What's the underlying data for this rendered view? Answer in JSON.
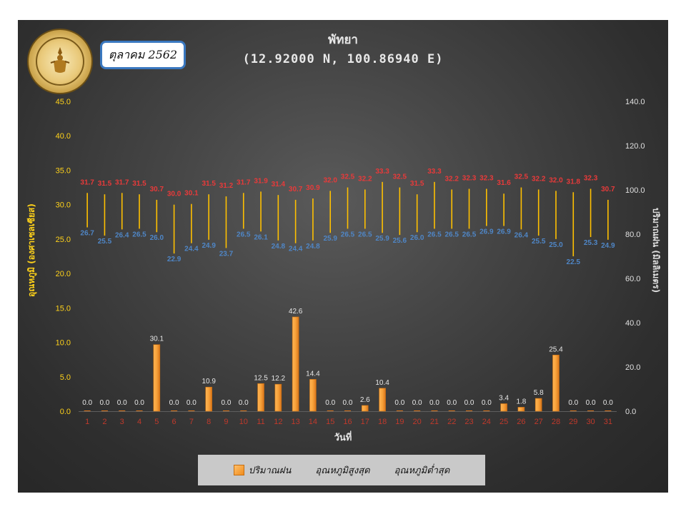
{
  "header": {
    "title": "พัทยา",
    "subtitle": "(12.92000 N, 100.86940 E)",
    "month_label": "ตุลาคม 2562"
  },
  "chart_data": {
    "type": "bar",
    "title": "พัทยา",
    "subtitle": "(12.92000 N, 100.86940 E)",
    "xlabel": "วันที่",
    "ylabel_left": "อุณหภูมิ (องศาเซลเซียส)",
    "ylabel_right": "ปริมาณฝน (มิลลิเมตร)",
    "ylim_left": [
      0,
      45
    ],
    "ylim_right": [
      0,
      140
    ],
    "yticks_left": [
      "0.0",
      "5.0",
      "10.0",
      "15.0",
      "20.0",
      "25.0",
      "30.0",
      "35.0",
      "40.0",
      "45.0"
    ],
    "yticks_right": [
      "0.0",
      "20.0",
      "40.0",
      "60.0",
      "80.0",
      "100.0",
      "120.0",
      "140.0"
    ],
    "categories": [
      "1",
      "2",
      "3",
      "4",
      "5",
      "6",
      "7",
      "8",
      "9",
      "10",
      "11",
      "12",
      "13",
      "14",
      "15",
      "16",
      "17",
      "18",
      "19",
      "20",
      "21",
      "22",
      "23",
      "24",
      "25",
      "26",
      "27",
      "28",
      "29",
      "30",
      "31"
    ],
    "series": [
      {
        "name": "ปริมาณฝน",
        "axis": "right",
        "values": [
          0.0,
          0.0,
          0.0,
          0.0,
          30.1,
          0.0,
          0.0,
          10.9,
          0.0,
          0.0,
          12.5,
          12.2,
          42.6,
          14.4,
          0.0,
          0.0,
          2.6,
          10.4,
          0.0,
          0.0,
          0.0,
          0.0,
          0.0,
          0.0,
          3.4,
          1.8,
          5.8,
          25.4,
          0.0,
          0.0,
          0.0
        ]
      },
      {
        "name": "อุณหภูมิสูงสุด",
        "axis": "left",
        "values": [
          31.7,
          31.5,
          31.7,
          31.5,
          30.7,
          30.0,
          30.1,
          31.5,
          31.2,
          31.7,
          31.9,
          31.4,
          30.7,
          30.9,
          32.0,
          32.5,
          32.2,
          33.3,
          32.5,
          31.5,
          33.3,
          32.2,
          32.3,
          32.3,
          31.6,
          32.5,
          32.2,
          32.0,
          31.8,
          32.3,
          30.7
        ]
      },
      {
        "name": "อุณหภูมิต่ำสุด",
        "axis": "left",
        "values": [
          26.7,
          25.5,
          26.4,
          26.5,
          26.0,
          22.9,
          24.4,
          24.9,
          23.7,
          26.5,
          26.1,
          24.8,
          24.4,
          24.8,
          25.9,
          26.5,
          26.5,
          25.9,
          25.6,
          26.0,
          26.5,
          26.5,
          26.5,
          26.9,
          26.9,
          26.4,
          25.5,
          25.0,
          22.5,
          25.3,
          24.9
        ]
      }
    ],
    "colors": {
      "rain": "#f0901f",
      "max": "#e83a3a",
      "min": "#4f86c6",
      "range_line": "#ffc000",
      "left_axis": "#ffd21a",
      "x_ticks": "#c0392b"
    },
    "legend": [
      "ปริมาณฝน",
      "อุณหภูมิสูงสุด",
      "อุณหภูมิต่ำสุด"
    ],
    "legend_placement": "bottom",
    "grid": false
  }
}
